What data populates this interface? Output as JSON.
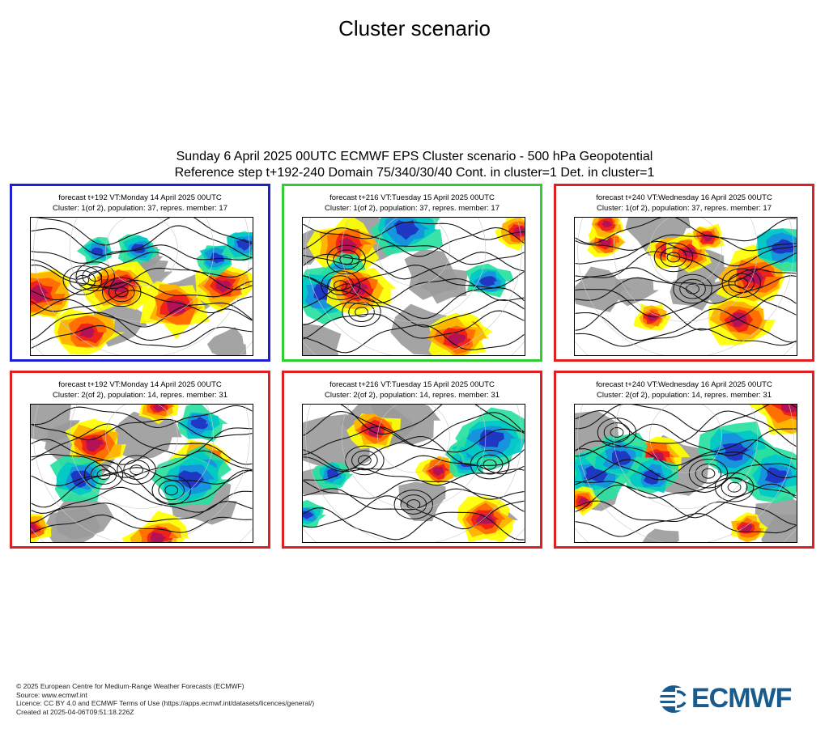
{
  "title": "Cluster scenario",
  "subtitle": {
    "line1": "Sunday 6 April 2025 00UTC ECMWF EPS Cluster scenario - 500 hPa Geopotential",
    "line2": "Reference step t+192-240 Domain 75/340/30/40 Cont. in cluster=1 Det. in cluster=1"
  },
  "colors": {
    "cluster1_first": "#1f1fd0",
    "cluster1_second": "#33cc33",
    "other": "#e02020"
  },
  "panels": [
    {
      "line1": "forecast t+192 VT:Monday 14 April 2025 00UTC",
      "line2": "Cluster: 1(of 2), population: 37, repres. member: 17",
      "border": "#1f1fd0"
    },
    {
      "line1": "forecast t+216 VT:Tuesday 15 April 2025 00UTC",
      "line2": "Cluster: 1(of 2), population: 37, repres. member: 17",
      "border": "#33cc33"
    },
    {
      "line1": "forecast t+240 VT:Wednesday 16 April 2025 00UTC",
      "line2": "Cluster: 1(of 2), population: 37, repres. member: 17",
      "border": "#e02020"
    },
    {
      "line1": "forecast t+192 VT:Monday 14 April 2025 00UTC",
      "line2": "Cluster: 2(of 2), population: 14, repres. member: 31",
      "border": "#e02020"
    },
    {
      "line1": "forecast t+216 VT:Tuesday 15 April 2025 00UTC",
      "line2": "Cluster: 2(of 2), population: 14, repres. member: 31",
      "border": "#e02020"
    },
    {
      "line1": "forecast t+240 VT:Wednesday 16 April 2025 00UTC",
      "line2": "Cluster: 2(of 2), population: 14, repres. member: 31",
      "border": "#e02020"
    }
  ],
  "footer": {
    "copyright": "© 2025 European Centre for Medium-Range Weather Forecasts (ECMWF)",
    "source": "Source: www.ecmwf.int",
    "licence": "Licence: CC BY 4.0 and ECMWF Terms of Use (https://apps.ecmwf.int/datasets/licences/general/)",
    "created": "Created at 2025-04-06T09:51:18.226Z"
  },
  "logo": {
    "text": "ECMWF",
    "icon": "ecmwf-logo-icon",
    "color": "#1a5b8e"
  }
}
